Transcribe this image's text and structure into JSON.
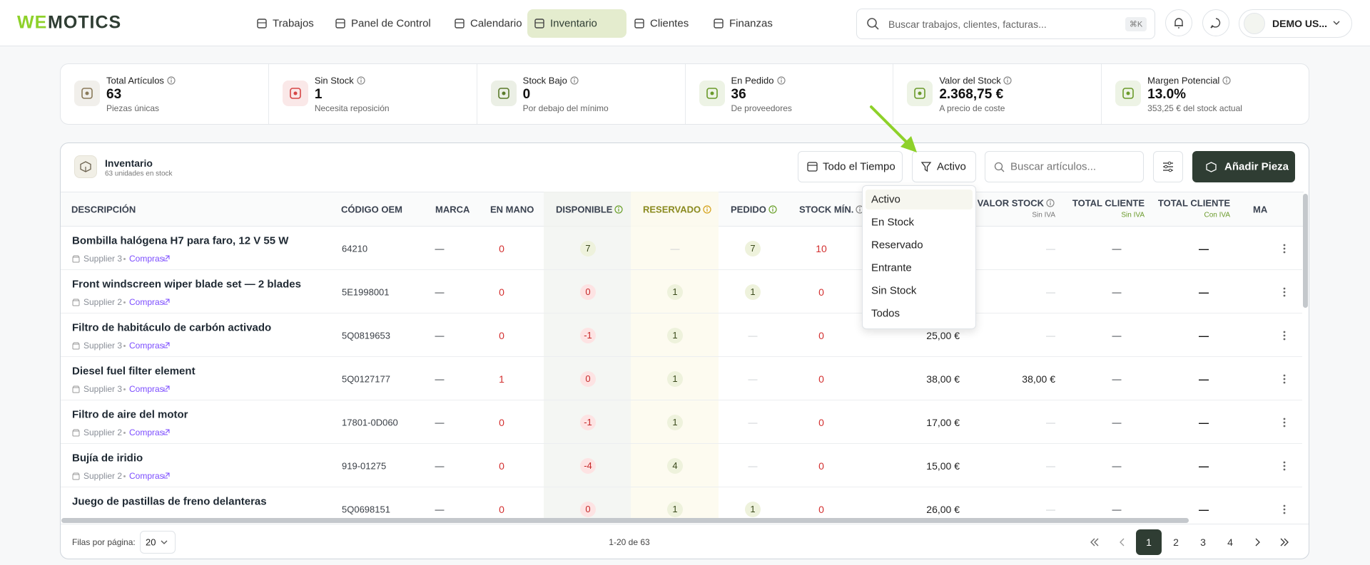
{
  "nav": {
    "logo_a": "WE",
    "logo_b": "MOTICS",
    "items": [
      {
        "label": "Trabajos"
      },
      {
        "label": "Panel de Control"
      },
      {
        "label": "Calendario"
      },
      {
        "label": "Inventario",
        "active": true
      },
      {
        "label": "Clientes"
      },
      {
        "label": "Finanzas"
      }
    ],
    "search_placeholder": "Buscar trabajos, clientes, facturas...",
    "search_shortcut": "⌘K",
    "user": "DEMO US..."
  },
  "stats": [
    {
      "label": "Total Artículos",
      "value": "63",
      "sub": "Piezas únicas",
      "color": "#8a7a5a"
    },
    {
      "label": "Sin Stock",
      "value": "1",
      "sub": "Necesita reposición",
      "color": "#d64545"
    },
    {
      "label": "Stock Bajo",
      "value": "0",
      "sub": "Por debajo del mínimo",
      "color": "#5a7a2a"
    },
    {
      "label": "En Pedido",
      "value": "36",
      "sub": "De proveedores",
      "color": "#6a9a2a"
    },
    {
      "label": "Valor del Stock",
      "value": "2.368,75 €",
      "sub": "A precio de coste",
      "color": "#6a9a2a"
    },
    {
      "label": "Margen Potencial",
      "value": "13.0%",
      "sub": "353,25 € del stock actual",
      "color": "#6a9a2a"
    }
  ],
  "panel": {
    "title": "Inventario",
    "subtitle": "63 unidades en stock",
    "date_filter": "Todo el Tiempo",
    "status_filter": "Activo",
    "search_placeholder": "Buscar artículos...",
    "add_button": "Añadir Pieza"
  },
  "status_menu": [
    {
      "label": "Activo",
      "selected": true
    },
    {
      "label": "En Stock"
    },
    {
      "label": "Reservado"
    },
    {
      "label": "Entrante"
    },
    {
      "label": "Sin Stock"
    },
    {
      "label": "Todos"
    }
  ],
  "table": {
    "columns": [
      {
        "label": "DESCRIPCIÓN"
      },
      {
        "label": "CÓDIGO OEM"
      },
      {
        "label": "MARCA"
      },
      {
        "label": "EN MANO"
      },
      {
        "label": "DISPONIBLE",
        "info": true
      },
      {
        "label": "RESERVADO",
        "info": true
      },
      {
        "label": "PEDIDO",
        "info": true
      },
      {
        "label": "STOCK MÍN.",
        "info": true
      },
      {
        "label": null
      },
      {
        "label": "VALOR STOCK",
        "sub": "Sin IVA",
        "info": true
      },
      {
        "label": "TOTAL CLIENTE",
        "sub": "Sin IVA"
      },
      {
        "label": "TOTAL CLIENTE",
        "sub": "Con IVA"
      },
      {
        "label": "MA"
      }
    ],
    "rows": [
      {
        "name": "Bombilla halógena H7 para faro, 12 V 55 W",
        "supplier": "Supplier 3",
        "link": "Compras",
        "cells": [
          "64210",
          "—",
          "0",
          "7",
          "—",
          "7",
          "10",
          null,
          "—",
          "—",
          "—"
        ]
      },
      {
        "name": "Front windscreen wiper blade set — 2 blades",
        "supplier": "Supplier 2",
        "link": "Compras",
        "cells": [
          "5E1998001",
          "—",
          "0",
          "0",
          "1",
          "1",
          "0",
          null,
          "—",
          "—",
          "—"
        ]
      },
      {
        "name": "Filtro de habitáculo de carbón activado",
        "supplier": "Supplier 3",
        "link": "Compras",
        "cells": [
          "5Q0819653",
          "—",
          "0",
          "-1",
          "1",
          "—",
          "0",
          "25,00 €",
          "—",
          "—",
          "—"
        ]
      },
      {
        "name": "Diesel fuel filter element",
        "supplier": "Supplier 3",
        "link": "Compras",
        "cells": [
          "5Q0127177",
          "—",
          "1",
          "0",
          "1",
          "—",
          "0",
          "38,00 €",
          "38,00 €",
          "—",
          "—"
        ]
      },
      {
        "name": "Filtro de aire del motor",
        "supplier": "Supplier 2",
        "link": "Compras",
        "cells": [
          "17801-0D060",
          "—",
          "0",
          "-1",
          "1",
          "—",
          "0",
          "17,00 €",
          "—",
          "—",
          "—"
        ]
      },
      {
        "name": "Bujía de iridio",
        "supplier": "Supplier 2",
        "link": "Compras",
        "cells": [
          "919-01275",
          "—",
          "0",
          "-4",
          "4",
          "—",
          "0",
          "15,00 €",
          "—",
          "—",
          "—"
        ]
      },
      {
        "name": "Juego de pastillas de freno delanteras",
        "supplier": null,
        "link": null,
        "cells": [
          "5Q0698151",
          "—",
          "0",
          "0",
          "1",
          "1",
          "0",
          "26,00 €",
          "—",
          "—",
          "—"
        ]
      }
    ]
  },
  "pagination": {
    "rows_label": "Filas por página:",
    "rows_per_page": "20",
    "range": "1-20 de 63",
    "pages": [
      {
        "label": "1",
        "current": true
      },
      {
        "label": "2"
      },
      {
        "label": "3"
      },
      {
        "label": "4"
      }
    ]
  }
}
